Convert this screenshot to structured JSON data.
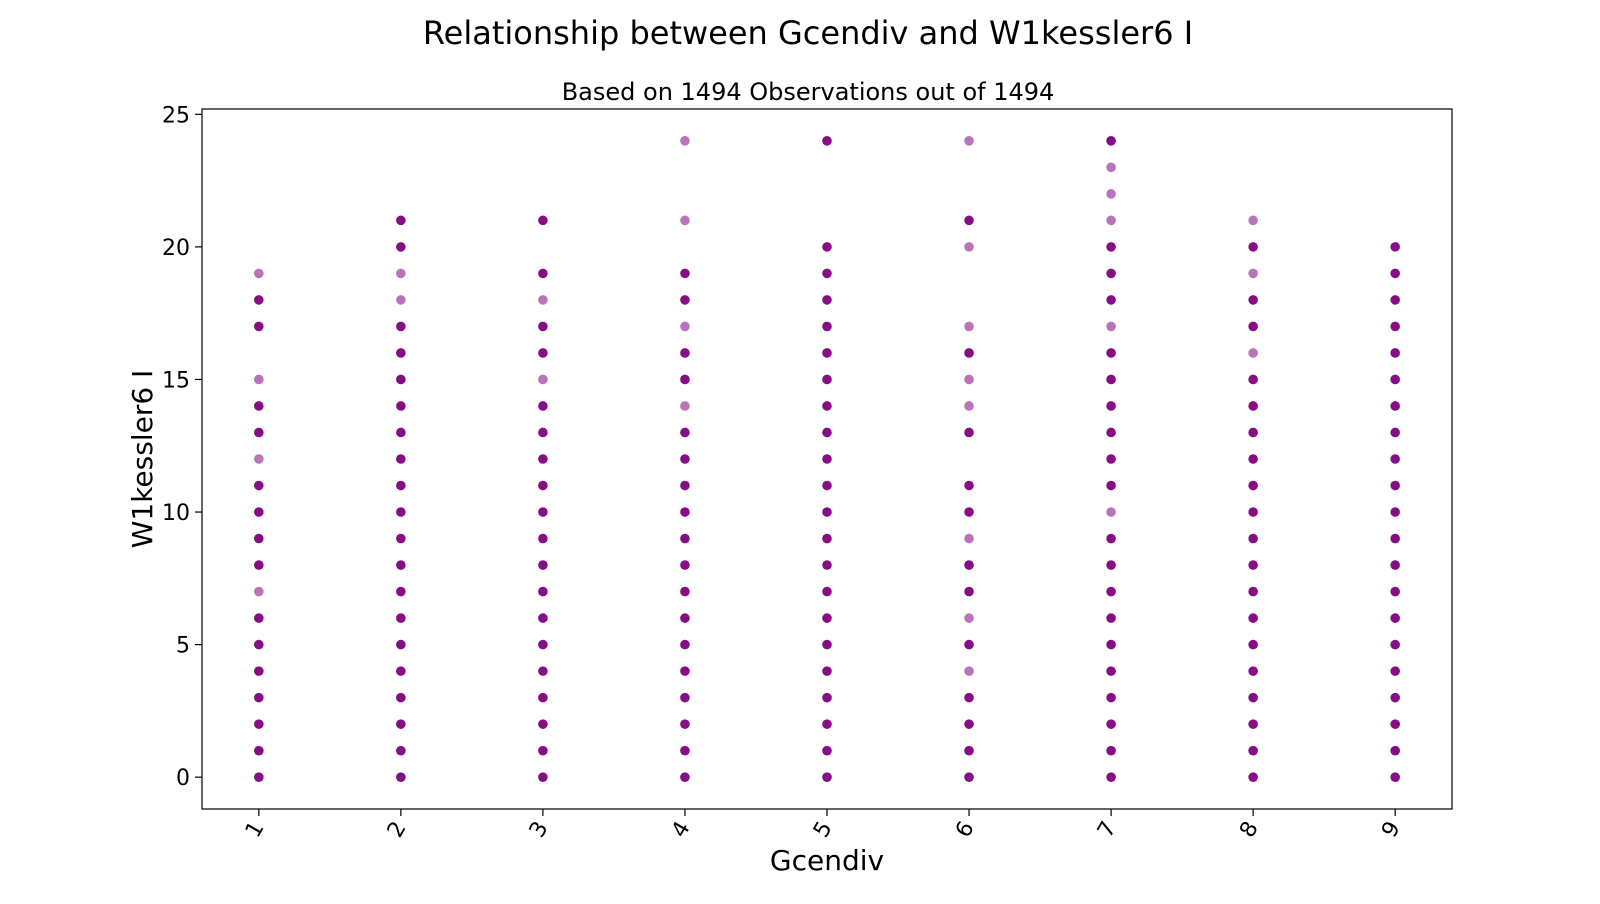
{
  "colors": {
    "point": "#800080",
    "axis": "#000000",
    "background": "#ffffff"
  },
  "chart_data": {
    "type": "scatter",
    "title": "Relationship between Gcendiv and W1kessler6 I",
    "subtitle": "Based on 1494 Observations out of 1494",
    "xlabel": "Gcendiv",
    "ylabel": "W1kessler6 I",
    "x_ticks": [
      "1",
      "2",
      "3",
      "4",
      "5",
      "6",
      "7",
      "8",
      "9"
    ],
    "y_ticks": [
      0,
      5,
      10,
      15,
      20,
      25
    ],
    "ylim": [
      -1.2,
      25.2
    ],
    "grid": false,
    "legend": "none",
    "series": [
      {
        "points": [
          {
            "x": 1,
            "y": [
              0,
              1,
              2,
              3,
              4,
              5,
              6,
              7,
              8,
              9,
              10,
              11,
              12,
              13,
              14,
              15,
              17,
              18,
              19
            ]
          },
          {
            "x": 2,
            "y": [
              0,
              1,
              2,
              3,
              4,
              5,
              6,
              7,
              8,
              9,
              10,
              11,
              12,
              13,
              14,
              15,
              16,
              17,
              18,
              19,
              20,
              21
            ]
          },
          {
            "x": 3,
            "y": [
              0,
              1,
              2,
              3,
              4,
              5,
              6,
              7,
              8,
              9,
              10,
              11,
              12,
              13,
              14,
              15,
              16,
              17,
              18,
              19,
              21
            ]
          },
          {
            "x": 4,
            "y": [
              0,
              1,
              2,
              3,
              4,
              5,
              6,
              7,
              8,
              9,
              10,
              11,
              12,
              13,
              14,
              15,
              16,
              17,
              18,
              19,
              21,
              24
            ]
          },
          {
            "x": 5,
            "y": [
              0,
              1,
              2,
              3,
              4,
              5,
              6,
              7,
              8,
              9,
              10,
              11,
              12,
              13,
              14,
              15,
              16,
              17,
              18,
              19,
              20,
              24
            ]
          },
          {
            "x": 6,
            "y": [
              0,
              1,
              2,
              3,
              4,
              5,
              6,
              7,
              8,
              9,
              10,
              11,
              13,
              14,
              15,
              16,
              17,
              20,
              21,
              24
            ]
          },
          {
            "x": 7,
            "y": [
              0,
              1,
              2,
              3,
              4,
              5,
              6,
              7,
              8,
              9,
              10,
              11,
              12,
              13,
              14,
              15,
              16,
              17,
              18,
              19,
              20,
              21,
              22,
              23,
              24
            ]
          },
          {
            "x": 8,
            "y": [
              0,
              1,
              2,
              3,
              4,
              5,
              6,
              7,
              8,
              9,
              10,
              11,
              12,
              13,
              14,
              15,
              16,
              17,
              18,
              19,
              20,
              21
            ]
          },
          {
            "x": 9,
            "y": [
              0,
              1,
              2,
              3,
              4,
              5,
              6,
              7,
              8,
              9,
              10,
              11,
              12,
              13,
              14,
              15,
              16,
              17,
              18,
              19,
              20
            ]
          }
        ],
        "faint_points": [
          {
            "x": 1,
            "y": [
              7,
              12,
              15,
              19
            ]
          },
          {
            "x": 2,
            "y": [
              18,
              19
            ]
          },
          {
            "x": 3,
            "y": [
              15,
              18
            ]
          },
          {
            "x": 4,
            "y": [
              14,
              17,
              21,
              24
            ]
          },
          {
            "x": 6,
            "y": [
              4,
              6,
              9,
              14,
              15,
              17,
              20,
              24
            ]
          },
          {
            "x": 7,
            "y": [
              10,
              17,
              21,
              22,
              23
            ]
          },
          {
            "x": 8,
            "y": [
              16,
              19,
              21
            ]
          }
        ]
      }
    ]
  }
}
